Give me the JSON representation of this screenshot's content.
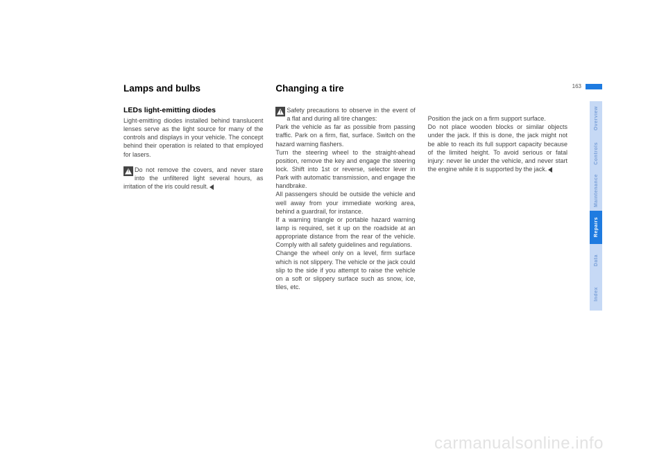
{
  "page_number": "163",
  "colors": {
    "tab_light_bg": "#c6d9f5",
    "tab_light_fg": "#7aa0d8",
    "tab_dark_bg": "#1e7be0",
    "tab_dark_fg": "#ffffff",
    "blue_bar": "#1e7be0",
    "body_text": "#444444",
    "watermark": "#e3e3e3"
  },
  "fonts": {
    "h1_size_pt": 13.5,
    "h2_size_pt": 10.5,
    "body_size_pt": 9,
    "tab_size_pt": 7
  },
  "col1": {
    "heading": "Lamps and bulbs",
    "subheading": "LEDs light-emitting diodes",
    "para1": "Light-emitting diodes installed behind translucent lenses serve as the light source for many of the controls and displays in your vehicle. The concept behind their operation is related to that employed for lasers.",
    "warn": "Do not remove the covers, and never stare into the unfiltered light several hours, as irritation of the iris could result."
  },
  "col2": {
    "heading": "Changing a tire",
    "warn": "Safety precautions to observe in the event of a flat and during all tire changes:\nPark the vehicle as far as possible from passing traffic. Park on a firm, flat, surface. Switch on the hazard warning flashers.\nTurn the steering wheel to the straight-ahead position, remove the key and engage the steering lock. Shift into 1st or reverse, selector lever in Park with automatic transmission, and engage the handbrake.\nAll passengers should be outside the vehicle and well away from your immediate working area, behind a guardrail, for instance.\nIf a warning triangle or portable hazard warning lamp is required, set it up on the roadside at an appropriate distance from the rear of the vehicle. Comply with all safety guidelines and regulations.\nChange the wheel only on a level, firm surface which is not slippery. The vehicle or the jack could slip to the side if you attempt to raise the vehicle on a soft or slippery surface such as snow, ice, tiles, etc."
  },
  "col3": {
    "para": "Position the jack on a firm support surface.\nDo not place wooden blocks or similar objects under the jack. If this is done, the jack might not be able to reach its full support capacity because of the limited height. To avoid serious or fatal injury: never lie under the vehicle, and never start the engine while it is supported by the jack."
  },
  "tabs": [
    {
      "label": "Overview",
      "style": "light",
      "height": 50
    },
    {
      "label": "Controls",
      "style": "light",
      "height": 50
    },
    {
      "label": "Maintenance",
      "style": "light",
      "height": 58
    },
    {
      "label": "Repairs",
      "style": "dark",
      "height": 48
    },
    {
      "label": "Data",
      "style": "light",
      "height": 48
    },
    {
      "label": "Index",
      "style": "light",
      "height": 48
    }
  ],
  "watermark": "carmanualsonline.info"
}
